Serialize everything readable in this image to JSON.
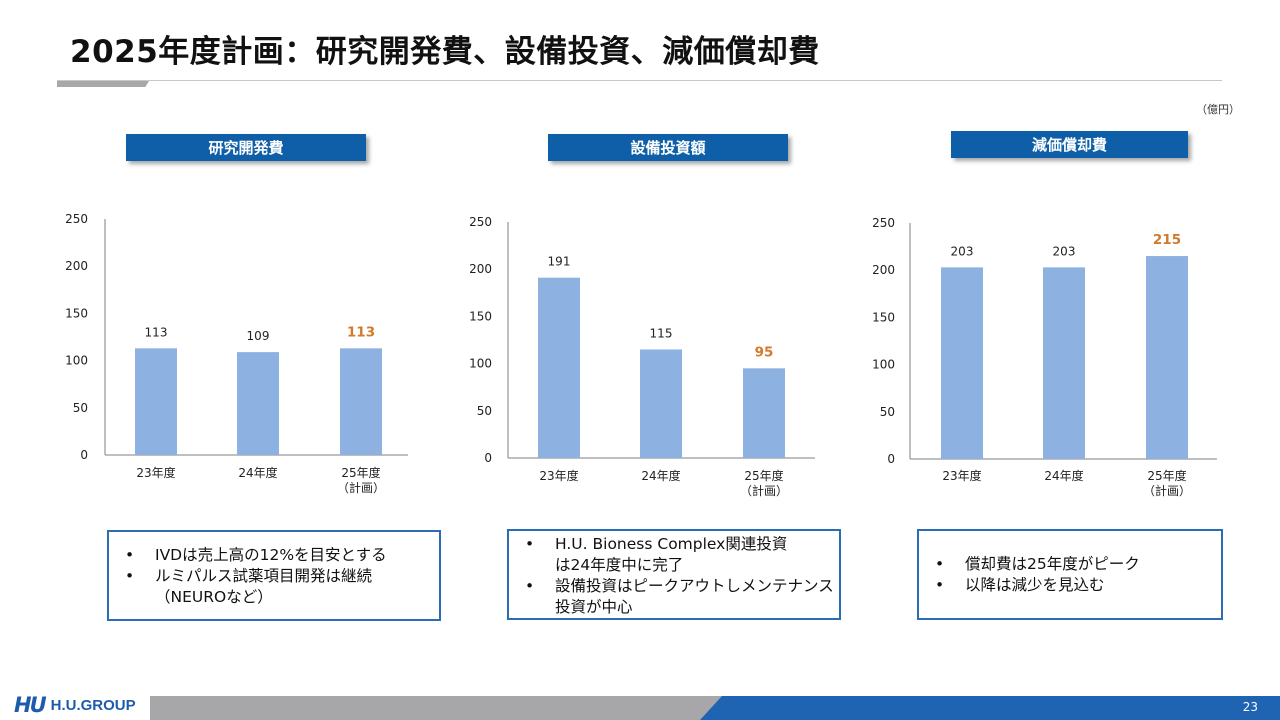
{
  "page": {
    "title": "2025年度計画：研究開発費、設備投資、減価償却費",
    "unit": "（億円）",
    "page_number": "23",
    "logo_mark": "HU",
    "logo_text": "H.U.GROUP"
  },
  "colors": {
    "bar": "#8db2e2",
    "highlight_label": "#d27a2a",
    "header": "#0f5fa8",
    "box_border": "#2a6db3"
  },
  "chart_data": [
    {
      "type": "bar",
      "title": "研究開発費",
      "categories": [
        "23年度",
        "24年度",
        "25年度\n（計画）"
      ],
      "values": [
        113,
        109,
        113
      ],
      "data_labels": [
        "113",
        "109",
        "113"
      ],
      "highlight_index": 2,
      "yticks": [
        "0",
        "50",
        "100",
        "150",
        "200",
        "250"
      ],
      "ylim": [
        0,
        250
      ]
    },
    {
      "type": "bar",
      "title": "設備投資額",
      "categories": [
        "23年度",
        "24年度",
        "25年度\n（計画）"
      ],
      "values": [
        191,
        115,
        95
      ],
      "data_labels": [
        "191",
        "115",
        "95"
      ],
      "highlight_index": 2,
      "yticks": [
        "0",
        "50",
        "100",
        "150",
        "200",
        "250"
      ],
      "ylim": [
        0,
        250
      ]
    },
    {
      "type": "bar",
      "title": "減価償却費",
      "categories": [
        "23年度",
        "24年度",
        "25年度\n（計画）"
      ],
      "values": [
        203,
        203,
        215
      ],
      "data_labels": [
        "203",
        "203",
        "215"
      ],
      "highlight_index": 2,
      "yticks": [
        "0",
        "50",
        "100",
        "150",
        "200",
        "250"
      ],
      "ylim": [
        0,
        250
      ]
    }
  ],
  "notes": [
    {
      "items": [
        "IVDは売上高の12%を目安とする",
        "ルミパルス試薬項目開発は継続\n（NEUROなど）"
      ]
    },
    {
      "items": [
        "H.U. Bioness Complex関連投資\nは24年度中に完了",
        "設備投資はピークアウトしメンテナンス\n投資が中心"
      ]
    },
    {
      "items": [
        "償却費は25年度がピーク",
        "以降は減少を見込む"
      ]
    }
  ]
}
